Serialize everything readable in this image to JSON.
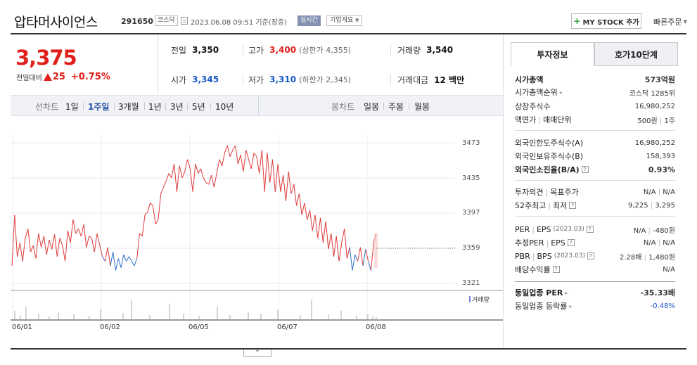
{
  "header": {
    "title": "압타머사이언스",
    "code": "291650",
    "market": "코스닥",
    "datetime": "2023.06.08 09:51 기준(장중)",
    "realtime": "실시간",
    "company_info": "기업개요",
    "mystock": "MY STOCK 추가",
    "quick_order": "빠른주문"
  },
  "price": {
    "current": "3,375",
    "change_label": "전일대비",
    "change": "25",
    "change_pct": "+0.75%"
  },
  "stats": {
    "prev_label": "전일",
    "prev": "3,350",
    "high_label": "고가",
    "high": "3,400",
    "upper_limit": "(상한가 4,355)",
    "volume_label": "거래량",
    "volume": "3,540",
    "open_label": "시가",
    "open": "3,345",
    "low_label": "저가",
    "low": "3,310",
    "lower_limit": "(하한가 2,345)",
    "amount_label": "거래대금",
    "amount": "12 백만"
  },
  "periods": {
    "line_label": "선차트",
    "line_items": [
      "1일",
      "1주일",
      "3개월",
      "1년",
      "3년",
      "5년",
      "10년"
    ],
    "active": "1주일",
    "candle_label": "봉차트",
    "candle_items": [
      "일봉",
      "주봉",
      "월봉"
    ]
  },
  "chart_data": {
    "type": "line",
    "title": "",
    "x_ticks": [
      "06/01",
      "06/02",
      "06/05",
      "06/07",
      "06/08"
    ],
    "y_ticks": [
      3473,
      3435,
      3397,
      3359,
      3321
    ],
    "ylim": [
      3321,
      3473
    ],
    "current_price": 3375,
    "reference_price": 3350,
    "up_color": "#e03a3a",
    "down_color": "#2f6ec9",
    "volume_label": "거래량",
    "series": [
      {
        "values": [
          3340,
          3395,
          3350,
          3365,
          3345,
          3370,
          3380,
          3355,
          3362,
          3348,
          3375,
          3360,
          3372,
          3352,
          3368,
          3358,
          3374,
          3350,
          3370,
          3362,
          3345,
          3378,
          3365,
          3390,
          3375,
          3380,
          3372,
          3385,
          3360,
          3372,
          3370,
          3355,
          3375,
          3362,
          3350,
          3345,
          3360,
          3340,
          3355,
          3335,
          3348,
          3338,
          3352,
          3345,
          3350,
          3345,
          3340,
          3348,
          3375,
          3372,
          3395,
          3398,
          3408,
          3405,
          3385,
          3390,
          3418,
          3425,
          3432,
          3440,
          3435,
          3450,
          3420,
          3448,
          3435,
          3442,
          3455,
          3445,
          3420,
          3450,
          3440,
          3445,
          3435,
          3430,
          3428,
          3438,
          3425,
          3440,
          3455,
          3448,
          3462,
          3470,
          3458,
          3465,
          3470,
          3450,
          3460,
          3442,
          3465,
          3455,
          3445,
          3462,
          3458,
          3440,
          3465,
          3420,
          3462,
          3430,
          3455,
          3420,
          3450,
          3420,
          3438,
          3410,
          3442,
          3418,
          3428,
          3405,
          3418,
          3395,
          3408,
          3390,
          3400,
          3378,
          3395,
          3370,
          3392,
          3365,
          3388,
          3358,
          3375,
          3350,
          3372,
          3345,
          3365,
          3380,
          3348,
          3360,
          3335,
          3352,
          3345,
          3360,
          3340,
          3358,
          3345,
          3335,
          3365,
          3375
        ]
      }
    ]
  },
  "side": {
    "tabs": [
      "투자정보",
      "호가10단계"
    ],
    "rows": {
      "market_cap_k": "시가총액",
      "market_cap_v": "573억원",
      "cap_rank_k": "시가총액순위",
      "cap_rank_v": "코스닥 1285위",
      "shares_k": "상장주식수",
      "shares_v": "16,980,252",
      "par_k": "액면가",
      "par_k2": "매매단위",
      "par_v": "500원",
      "par_v2": "1주",
      "foreign_limit_k": "외국인한도주식수(A)",
      "foreign_limit_v": "16,980,252",
      "foreign_hold_k": "외국인보유주식수(B)",
      "foreign_hold_v": "158,393",
      "foreign_ratio_k": "외국인소진율(B/A)",
      "foreign_ratio_v": "0.93%",
      "opinion_k": "투자의견",
      "opinion_k2": "목표주가",
      "opinion_v": "N/A",
      "opinion_v2": "N/A",
      "w52_k": "52주최고",
      "w52_k2": "최저",
      "w52_v": "9,225",
      "w52_v2": "3,295",
      "per_k": "PER",
      "per_k2": "EPS",
      "per_year": "(2023.03)",
      "per_v": "N/A",
      "per_v2": "-480원",
      "est_k": "추정PER",
      "est_k2": "EPS",
      "est_v": "N/A",
      "est_v2": "N/A",
      "pbr_k": "PBR",
      "pbr_k2": "BPS",
      "pbr_year": "(2023.03)",
      "pbr_v": "2.28배",
      "pbr_v2": "1,480원",
      "div_k": "배당수익률",
      "div_v": "N/A",
      "sector_per_k": "동일업종 PER",
      "sector_per_v": "-35.33배",
      "sector_rate_k": "동일업종 등락률",
      "sector_rate_v": "-0.48%"
    }
  }
}
